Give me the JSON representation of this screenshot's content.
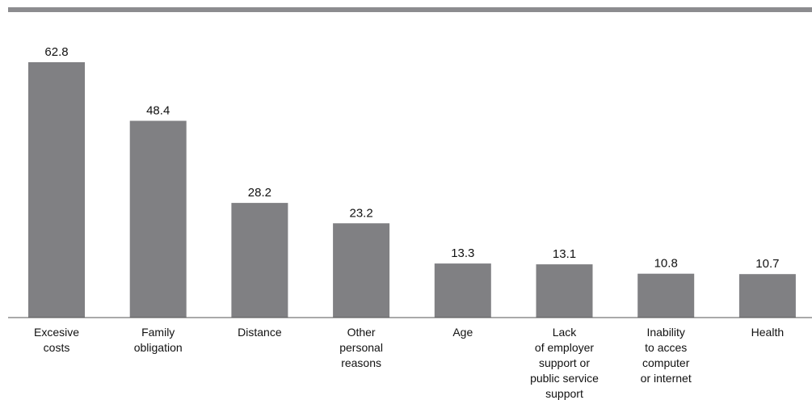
{
  "colors": {
    "bar": "#808083",
    "top_rule": "#8c8c8f",
    "axis": "#555555",
    "text": "#111111"
  },
  "chart_data": {
    "type": "bar",
    "categories": [
      [
        "Excesive",
        "costs"
      ],
      [
        "Family",
        "obligation"
      ],
      [
        "Distance"
      ],
      [
        "Other",
        "personal",
        "reasons"
      ],
      [
        "Age"
      ],
      [
        "Lack",
        "of employer",
        "support or",
        "public service",
        "support"
      ],
      [
        "Inability",
        "to acces",
        "computer",
        "or internet"
      ],
      [
        "Health"
      ]
    ],
    "values": [
      62.8,
      48.4,
      28.2,
      23.2,
      13.3,
      13.1,
      10.8,
      10.7
    ],
    "value_labels": [
      "62.8",
      "48.4",
      "28.2",
      "23.2",
      "13.3",
      "13.1",
      "10.8",
      "10.7"
    ],
    "ylim": [
      0,
      62.8
    ],
    "grid": false,
    "legend": "none"
  }
}
